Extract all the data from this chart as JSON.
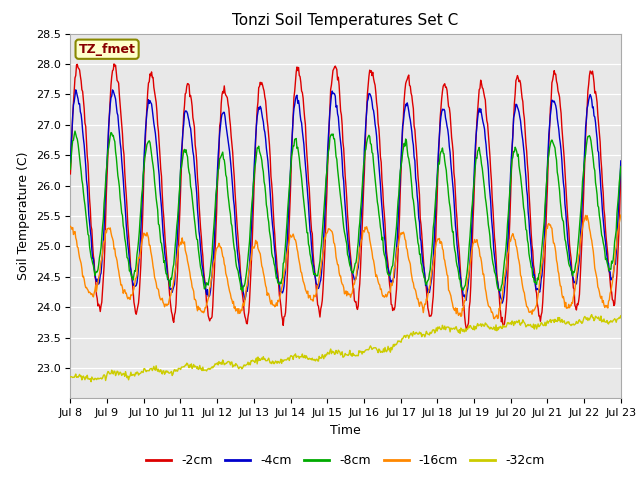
{
  "title": "Tonzi Soil Temperatures Set C",
  "xlabel": "Time",
  "ylabel": "Soil Temperature (C)",
  "ylim": [
    22.5,
    28.5
  ],
  "yticks": [
    23.0,
    23.5,
    24.0,
    24.5,
    25.0,
    25.5,
    26.0,
    26.5,
    27.0,
    27.5,
    28.0,
    28.5
  ],
  "xtick_labels": [
    "Jul 8",
    "Jul 9",
    "Jul 10",
    "Jul 11",
    "Jul 12",
    "Jul 13",
    "Jul 14",
    "Jul 15",
    "Jul 16",
    "Jul 17",
    "Jul 18",
    "Jul 19",
    "Jul 20",
    "Jul 21",
    "Jul 22",
    "Jul 23"
  ],
  "legend_label": "TZ_fmet",
  "series_names": [
    "-2cm",
    "-4cm",
    "-8cm",
    "-16cm",
    "-32cm"
  ],
  "series_colors": [
    "#dd0000",
    "#0000cc",
    "#00aa00",
    "#ff8800",
    "#cccc00"
  ],
  "background_color": "#e8e8e8",
  "figure_color": "#ffffff",
  "n_points": 720,
  "duration_days": 15.0
}
